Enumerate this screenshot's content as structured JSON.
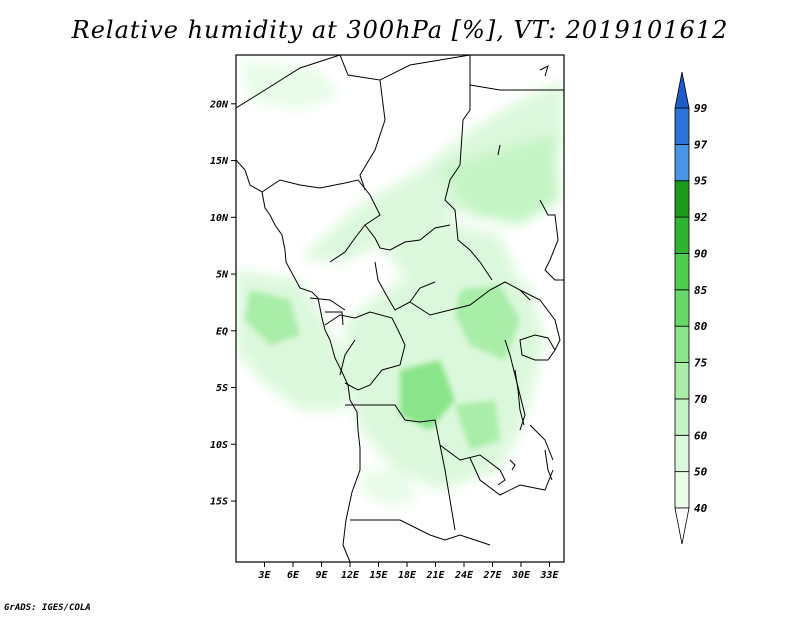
{
  "title": "Relative humidity at 300hPa [%], VT: 2019101612",
  "credit": "GrADS: IGES/COLA",
  "map": {
    "lat_labels": [
      {
        "text": "20N",
        "lat": 20
      },
      {
        "text": "15N",
        "lat": 15
      },
      {
        "text": "10N",
        "lat": 10
      },
      {
        "text": "5N",
        "lat": 5
      },
      {
        "text": "EQ",
        "lat": 0
      },
      {
        "text": "5S",
        "lat": -5
      },
      {
        "text": "10S",
        "lat": -10
      },
      {
        "text": "15S",
        "lat": -15
      }
    ],
    "lon_labels": [
      {
        "text": "3E",
        "lon": 3
      },
      {
        "text": "6E",
        "lon": 6
      },
      {
        "text": "9E",
        "lon": 9
      },
      {
        "text": "12E",
        "lon": 12
      },
      {
        "text": "15E",
        "lon": 15
      },
      {
        "text": "18E",
        "lon": 18
      },
      {
        "text": "21E",
        "lon": 21
      },
      {
        "text": "24E",
        "lon": 24
      },
      {
        "text": "27E",
        "lon": 27
      },
      {
        "text": "30E",
        "lon": 30
      },
      {
        "text": "33E",
        "lon": 33
      }
    ]
  },
  "colorbar": {
    "levels": [
      "40",
      "50",
      "60",
      "70",
      "75",
      "80",
      "85",
      "90",
      "92",
      "95",
      "97",
      "99"
    ],
    "colors": [
      "#e8fce8",
      "#dcf8dc",
      "#c4f4c4",
      "#a8eda8",
      "#8ae48a",
      "#68d868",
      "#4fcd4f",
      "#2fb42f",
      "#1a9a1a",
      "#4a96e6",
      "#2a74dc",
      "#1e5ac8"
    ]
  },
  "palette": {
    "rh40": "#e8fce8",
    "rh50": "#dcf8dc",
    "rh60": "#c4f4c4",
    "rh70": "#a8eda8",
    "rh75": "#8ae48a"
  }
}
